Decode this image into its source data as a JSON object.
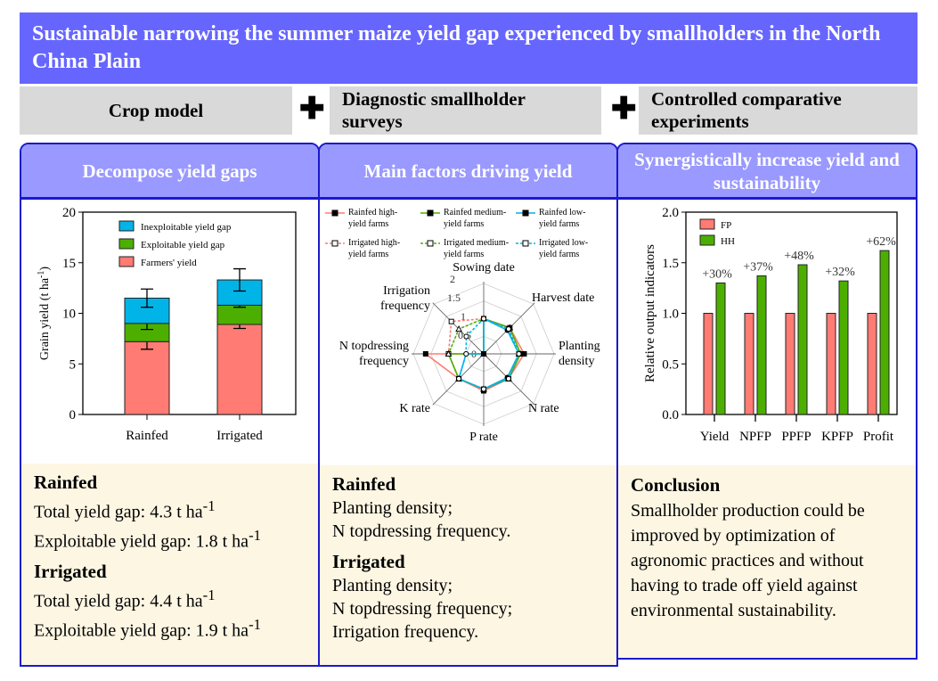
{
  "title": "Sustainable narrowing the summer maize yield gap experienced by smallholders in the North China Plain",
  "methods": [
    "Crop model",
    "Diagnostic smallholder surveys",
    "Controlled comparative experiments"
  ],
  "plus_symbol": "✚",
  "colors": {
    "banner": "#6666ff",
    "panel_header": "#9999ff",
    "border": "#1a1acc",
    "method_box": "#d9d9d9",
    "footer": "#fdf6e3",
    "red": "#ff7b73",
    "green": "#4caf00",
    "blue": "#00b4e8"
  },
  "panels": [
    {
      "header": "Decompose yield gaps",
      "sections": [
        {
          "heading": "Rainfed",
          "lines": [
            "Total yield gap: 4.3 t ha",
            "Exploitable yield gap: 1.8 t ha"
          ]
        },
        {
          "heading": "Irrigated",
          "lines": [
            "Total yield gap: 4.4 t ha",
            "Exploitable yield gap: 1.9 t ha"
          ]
        }
      ],
      "unit_sup": "-1"
    },
    {
      "header": "Main factors driving yield",
      "sections": [
        {
          "heading": "Rainfed",
          "lines": [
            "Planting density;",
            "N topdressing frequency."
          ]
        },
        {
          "heading": "Irrigated",
          "lines": [
            "Planting density;",
            "N topdressing frequency;",
            "Irrigation frequency."
          ]
        }
      ]
    },
    {
      "header": "Synergistically increase yield and sustainability",
      "sections": [
        {
          "heading": "Conclusion",
          "lines": [
            "Smallholder production could be improved by optimization of agronomic practices and without having to trade off yield against environmental sustainability."
          ]
        }
      ]
    }
  ],
  "chart_data": [
    {
      "type": "bar",
      "stacked": true,
      "categories": [
        "Rainfed",
        "Irrigated"
      ],
      "ylabel": "Grain yield (t ha",
      "ylabel_sup": "-1",
      "ylabel_end": ")",
      "ylim": [
        0,
        20
      ],
      "yticks": [
        0,
        5,
        10,
        15,
        20
      ],
      "legend_placement": "top",
      "series": [
        {
          "name": "Farmers' yield",
          "values": [
            7.2,
            8.9
          ],
          "errors": [
            0.75,
            0.4
          ],
          "color": "#ff7b73"
        },
        {
          "name": "Exploitable yield gap",
          "values": [
            1.8,
            1.9
          ],
          "errors": [
            0.6,
            0.2
          ],
          "color": "#4caf00"
        },
        {
          "name": "Inexploitable yield gap",
          "values": [
            2.5,
            2.5
          ],
          "errors": [
            0.9,
            1.1
          ],
          "color": "#00b4e8"
        }
      ]
    },
    {
      "type": "radar",
      "axes": [
        "Sowing date",
        "Harvest date",
        "Planting density",
        "N rate",
        "P rate",
        "K rate",
        "N topdressing frequency",
        "Irrigation frequency"
      ],
      "rlim": [
        0,
        2
      ],
      "rticks": [
        "0",
        "0.5",
        "1",
        "1.5",
        "2"
      ],
      "legend_placement": "top",
      "series": [
        {
          "name": "Rainfed high-yield farms",
          "values": [
            1.0,
            1.05,
            1.15,
            1.0,
            1.05,
            1.0,
            1.65,
            0
          ],
          "color": "#ff7b73",
          "dash": false,
          "marker": "square"
        },
        {
          "name": "Rainfed medium-yield farms",
          "values": [
            1.0,
            1.05,
            1.05,
            1.0,
            1.0,
            1.0,
            1.0,
            0
          ],
          "color": "#4caf00",
          "dash": false,
          "marker": "triangle"
        },
        {
          "name": "Rainfed low-yield farms",
          "values": [
            1.0,
            0.95,
            1.0,
            0.95,
            1.0,
            1.0,
            0.5,
            0
          ],
          "color": "#00b4e8",
          "dash": false,
          "marker": "circle"
        },
        {
          "name": "Irrigated high-yield farms",
          "values": [
            1.0,
            1.0,
            1.0,
            1.0,
            1.0,
            1.0,
            1.0,
            1.3
          ],
          "color": "#ff7b73",
          "dash": true,
          "marker": "square-open"
        },
        {
          "name": "Irrigated medium-yield farms",
          "values": [
            1.0,
            1.0,
            1.0,
            1.0,
            1.0,
            1.0,
            1.0,
            1.0
          ],
          "color": "#4caf00",
          "dash": true,
          "marker": "triangle-open"
        },
        {
          "name": "Irrigated low-yield farms",
          "values": [
            1.0,
            1.0,
            1.0,
            1.0,
            1.0,
            1.0,
            0.5,
            0.7
          ],
          "color": "#00b4e8",
          "dash": true,
          "marker": "circle-open"
        }
      ]
    },
    {
      "type": "bar",
      "categories": [
        "Yield",
        "NPFP",
        "PPFP",
        "KPFP",
        "Profit"
      ],
      "ylabel": "Relative output indicators",
      "ylim": [
        0,
        2
      ],
      "yticks": [
        "0.0",
        "0.5",
        "1.0",
        "1.5",
        "2.0"
      ],
      "legend_placement": "top-left",
      "series": [
        {
          "name": "FP",
          "values": [
            1,
            1,
            1,
            1,
            1
          ],
          "color": "#ff7b73"
        },
        {
          "name": "HH",
          "values": [
            1.3,
            1.37,
            1.48,
            1.32,
            1.62
          ],
          "color": "#4caf00"
        }
      ],
      "annotations": [
        "+30%",
        "+37%",
        "+48%",
        "+32%",
        "+62%"
      ]
    }
  ]
}
